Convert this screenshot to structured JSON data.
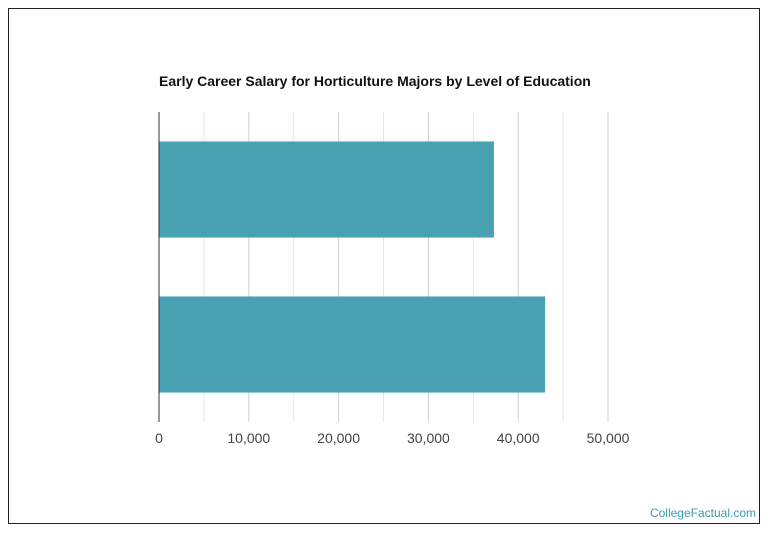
{
  "chart_data": {
    "type": "bar",
    "orientation": "horizontal",
    "title": "Early Career Salary for Horticulture Majors by Level of Education",
    "xlabel": "",
    "ylabel": "",
    "categories": [
      "",
      ""
    ],
    "values": [
      37300,
      43000
    ],
    "xlim": [
      0,
      50000
    ],
    "xticks": [
      0,
      10000,
      20000,
      30000,
      40000,
      50000
    ],
    "xtick_labels": [
      "0",
      "10,000",
      "20,000",
      "30,000",
      "40,000",
      "50,000"
    ],
    "grid": true,
    "legend": "none",
    "bar_color": "#4aa1b3"
  },
  "footer": {
    "credit": "CollegeFactual.com"
  }
}
